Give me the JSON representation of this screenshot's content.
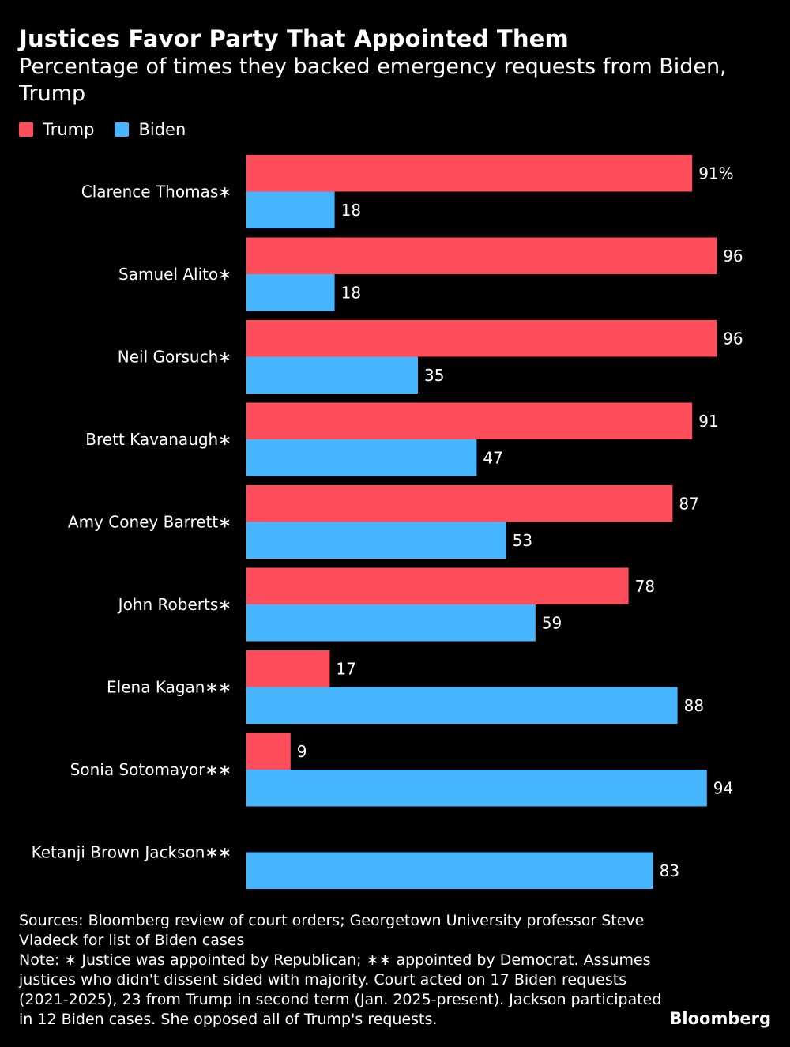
{
  "title": "Justices Favor Party That Appointed Them",
  "subtitle": "Percentage of times they backed emergency requests from Biden, Trump",
  "legend": [
    {
      "name": "Trump",
      "color": "#ff4e5b"
    },
    {
      "name": "Biden",
      "color": "#45b5ff"
    }
  ],
  "chart_data": {
    "type": "bar",
    "orientation": "horizontal",
    "categories": [
      "Clarence Thomas∗",
      "Samuel Alito∗",
      "Neil Gorsuch∗",
      "Brett Kavanaugh∗",
      "Amy Coney Barrett∗",
      "John Roberts∗",
      "Elena Kagan∗∗",
      "Sonia Sotomayor∗∗",
      "Ketanji Brown Jackson∗∗"
    ],
    "series": [
      {
        "name": "Trump",
        "color": "#ff4e5b",
        "values": [
          91,
          96,
          96,
          91,
          87,
          78,
          17,
          9,
          null
        ]
      },
      {
        "name": "Biden",
        "color": "#45b5ff",
        "values": [
          18,
          18,
          35,
          47,
          53,
          59,
          88,
          94,
          83
        ]
      }
    ],
    "first_label_suffix": "%",
    "xlim": [
      0,
      100
    ],
    "title": "Justices Favor Party That Appointed Them",
    "xlabel": "",
    "ylabel": "",
    "legend_position": "top-left",
    "grid": false
  },
  "footer": {
    "sources": "Sources: Bloomberg review of court orders; Georgetown University professor Steve Vladeck for list of Biden cases",
    "note": "Note: ∗ Justice was appointed by Republican; ∗∗ appointed by Democrat. Assumes justices who didn't dissent sided with majority. Court acted on 17 Biden requests (2021-2025), 23 from Trump in second term (Jan. 2025-present). Jackson participated in 12 Biden cases. She opposed all of Trump's requests."
  },
  "brand": "Bloomberg"
}
